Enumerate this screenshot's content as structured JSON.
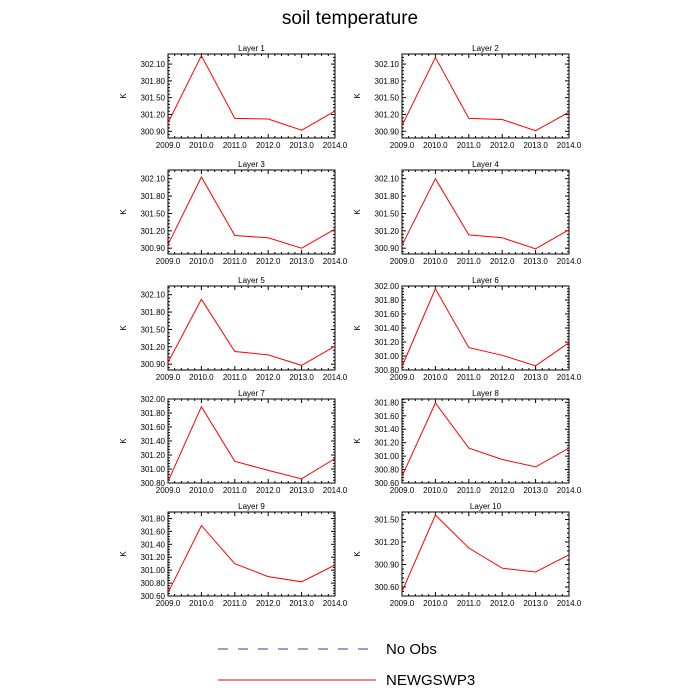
{
  "title": "soil temperature",
  "legend": {
    "items": [
      {
        "label": "No Obs",
        "color": "#3a3aa0",
        "style": "dashed"
      },
      {
        "label": "NEWGSWP3",
        "color": "#ff0000",
        "style": "solid"
      }
    ]
  },
  "chart_data": [
    {
      "type": "line",
      "title": "Layer 1",
      "ylabel": "K",
      "x": [
        2009,
        2010,
        2011,
        2012,
        2013,
        2014
      ],
      "xticks": [
        "2009.0",
        "2010.0",
        "2011.0",
        "2012.0",
        "2013.0",
        "2014.0"
      ],
      "xlim": [
        2009,
        2014
      ],
      "yticks": [
        "300.90",
        "301.20",
        "301.50",
        "301.80",
        "302.10"
      ],
      "ytick_values": [
        300.9,
        301.2,
        301.5,
        301.8,
        302.1
      ],
      "ylim": [
        300.78,
        302.28
      ],
      "series": [
        {
          "name": "NEWGSWP3",
          "values": [
            301.05,
            302.25,
            301.13,
            301.12,
            300.92,
            301.26
          ]
        }
      ]
    },
    {
      "type": "line",
      "title": "Layer 2",
      "ylabel": "K",
      "x": [
        2009,
        2010,
        2011,
        2012,
        2013,
        2014
      ],
      "xticks": [
        "2009.0",
        "2010.0",
        "2011.0",
        "2012.0",
        "2013.0",
        "2014.0"
      ],
      "xlim": [
        2009,
        2014
      ],
      "yticks": [
        "300.90",
        "301.20",
        "301.50",
        "301.80",
        "302.10"
      ],
      "ytick_values": [
        300.9,
        301.2,
        301.5,
        301.8,
        302.1
      ],
      "ylim": [
        300.78,
        302.28
      ],
      "series": [
        {
          "name": "NEWGSWP3",
          "values": [
            301.0,
            302.22,
            301.13,
            301.11,
            300.91,
            301.24
          ]
        }
      ]
    },
    {
      "type": "line",
      "title": "Layer 3",
      "ylabel": "K",
      "x": [
        2009,
        2010,
        2011,
        2012,
        2013,
        2014
      ],
      "xticks": [
        "2009.0",
        "2010.0",
        "2011.0",
        "2012.0",
        "2013.0",
        "2014.0"
      ],
      "xlim": [
        2009,
        2014
      ],
      "yticks": [
        "300.90",
        "301.20",
        "301.50",
        "301.80",
        "302.10"
      ],
      "ytick_values": [
        300.9,
        301.2,
        301.5,
        301.8,
        302.1
      ],
      "ylim": [
        300.8,
        302.25
      ],
      "series": [
        {
          "name": "NEWGSWP3",
          "values": [
            300.96,
            302.13,
            301.12,
            301.08,
            300.9,
            301.23
          ]
        }
      ]
    },
    {
      "type": "line",
      "title": "Layer 4",
      "ylabel": "K",
      "x": [
        2009,
        2010,
        2011,
        2012,
        2013,
        2014
      ],
      "xticks": [
        "2009.0",
        "2010.0",
        "2011.0",
        "2012.0",
        "2013.0",
        "2014.0"
      ],
      "xlim": [
        2009,
        2014
      ],
      "yticks": [
        "300.90",
        "301.20",
        "301.50",
        "301.80",
        "302.10"
      ],
      "ytick_values": [
        300.9,
        301.2,
        301.5,
        301.8,
        302.1
      ],
      "ylim": [
        300.8,
        302.25
      ],
      "series": [
        {
          "name": "NEWGSWP3",
          "values": [
            300.95,
            302.1,
            301.13,
            301.08,
            300.89,
            301.22
          ]
        }
      ]
    },
    {
      "type": "line",
      "title": "Layer 5",
      "ylabel": "K",
      "x": [
        2009,
        2010,
        2011,
        2012,
        2013,
        2014
      ],
      "xticks": [
        "2009.0",
        "2010.0",
        "2011.0",
        "2012.0",
        "2013.0",
        "2014.0"
      ],
      "xlim": [
        2009,
        2014
      ],
      "yticks": [
        "300.90",
        "301.20",
        "301.50",
        "301.80",
        "302.10"
      ],
      "ytick_values": [
        300.9,
        301.2,
        301.5,
        301.8,
        302.1
      ],
      "ylim": [
        300.8,
        302.25
      ],
      "series": [
        {
          "name": "NEWGSWP3",
          "values": [
            300.93,
            302.02,
            301.12,
            301.06,
            300.88,
            301.21
          ]
        }
      ]
    },
    {
      "type": "line",
      "title": "Layer 6",
      "ylabel": "K",
      "x": [
        2009,
        2010,
        2011,
        2012,
        2013,
        2014
      ],
      "xticks": [
        "2009.0",
        "2010.0",
        "2011.0",
        "2012.0",
        "2013.0",
        "2014.0"
      ],
      "xlim": [
        2009,
        2014
      ],
      "yticks": [
        "300.80",
        "301.00",
        "301.20",
        "301.40",
        "301.60",
        "301.80",
        "302.00"
      ],
      "ytick_values": [
        300.8,
        301.0,
        301.2,
        301.4,
        301.6,
        301.8,
        302.0
      ],
      "ylim": [
        300.8,
        302.0
      ],
      "series": [
        {
          "name": "NEWGSWP3",
          "values": [
            300.85,
            301.96,
            301.12,
            301.01,
            300.86,
            301.19
          ]
        }
      ]
    },
    {
      "type": "line",
      "title": "Layer 7",
      "ylabel": "K",
      "x": [
        2009,
        2010,
        2011,
        2012,
        2013,
        2014
      ],
      "xticks": [
        "2009.0",
        "2010.0",
        "2011.0",
        "2012.0",
        "2013.0",
        "2014.0"
      ],
      "xlim": [
        2009,
        2014
      ],
      "yticks": [
        "300.80",
        "301.00",
        "301.20",
        "301.40",
        "301.60",
        "301.80",
        "302.00"
      ],
      "ytick_values": [
        300.8,
        301.0,
        301.2,
        301.4,
        301.6,
        301.8,
        302.0
      ],
      "ylim": [
        300.8,
        302.0
      ],
      "series": [
        {
          "name": "NEWGSWP3",
          "values": [
            300.82,
            301.89,
            301.11,
            300.98,
            300.86,
            301.15
          ]
        }
      ]
    },
    {
      "type": "line",
      "title": "Layer 8",
      "ylabel": "K",
      "x": [
        2009,
        2010,
        2011,
        2012,
        2013,
        2014
      ],
      "xticks": [
        "2009.0",
        "2010.0",
        "2011.0",
        "2012.0",
        "2013.0",
        "2014.0"
      ],
      "xlim": [
        2009,
        2014
      ],
      "yticks": [
        "300.60",
        "300.80",
        "301.00",
        "301.20",
        "301.40",
        "301.60",
        "301.80"
      ],
      "ytick_values": [
        300.6,
        300.8,
        301.0,
        301.2,
        301.4,
        301.6,
        301.8
      ],
      "ylim": [
        300.6,
        301.85
      ],
      "series": [
        {
          "name": "NEWGSWP3",
          "values": [
            300.7,
            301.79,
            301.12,
            300.95,
            300.84,
            301.12
          ]
        }
      ]
    },
    {
      "type": "line",
      "title": "Layer 9",
      "ylabel": "K",
      "x": [
        2009,
        2010,
        2011,
        2012,
        2013,
        2014
      ],
      "xticks": [
        "2009.0",
        "2010.0",
        "2011.0",
        "2012.0",
        "2013.0",
        "2014.0"
      ],
      "xlim": [
        2009,
        2014
      ],
      "yticks": [
        "300.60",
        "300.80",
        "301.00",
        "301.20",
        "301.40",
        "301.60",
        "301.80"
      ],
      "ytick_values": [
        300.6,
        300.8,
        301.0,
        301.2,
        301.4,
        301.6,
        301.8
      ],
      "ylim": [
        300.6,
        301.9
      ],
      "series": [
        {
          "name": "NEWGSWP3",
          "values": [
            300.65,
            301.69,
            301.1,
            300.9,
            300.82,
            301.08
          ]
        }
      ]
    },
    {
      "type": "line",
      "title": "Layer 10",
      "ylabel": "K",
      "x": [
        2009,
        2010,
        2011,
        2012,
        2013,
        2014
      ],
      "xticks": [
        "2009.0",
        "2010.0",
        "2011.0",
        "2012.0",
        "2013.0",
        "2014.0"
      ],
      "xlim": [
        2009,
        2014
      ],
      "yticks": [
        "300.60",
        "300.90",
        "301.20",
        "301.50"
      ],
      "ytick_values": [
        300.6,
        300.9,
        301.2,
        301.5
      ],
      "ylim": [
        300.48,
        301.6
      ],
      "series": [
        {
          "name": "NEWGSWP3",
          "values": [
            300.54,
            301.56,
            301.12,
            300.85,
            300.8,
            301.03
          ]
        }
      ]
    }
  ]
}
